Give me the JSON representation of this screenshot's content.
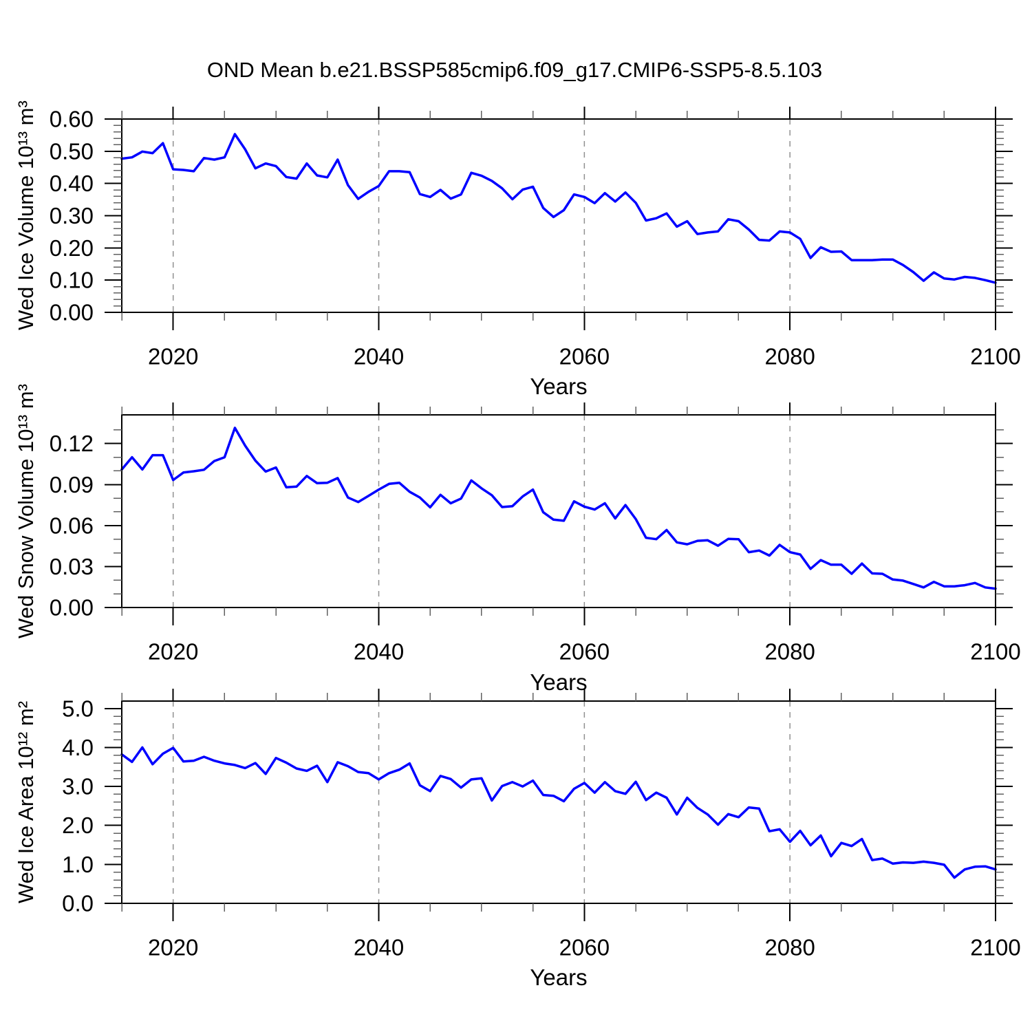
{
  "figure": {
    "title": "OND Mean b.e21.BSSP585cmip6.f09_g17.CMIP6-SSP5-8.5.103",
    "background": "#ffffff",
    "colors": {
      "line": "#0000ff",
      "frame": "#000000",
      "major_tick": "#000000",
      "minor_tick": "#606060",
      "gridline": "#909090",
      "text": "#000000"
    }
  },
  "chart_data": [
    {
      "type": "line",
      "ylabel": "Wed Ice Volume 10¹³ m³",
      "xlabel": "Years",
      "xlim": [
        2015,
        2100
      ],
      "ylim": [
        0,
        0.6
      ],
      "x_start": 2015,
      "x_step": 1,
      "grid": "vertical-dashed",
      "gridlines_x": [
        2020,
        2040,
        2060,
        2080
      ],
      "xticks_major": {
        "values": [
          2020,
          2040,
          2060,
          2080,
          2100
        ],
        "labels": [
          "2020",
          "2040",
          "2060",
          "2080",
          "2100"
        ]
      },
      "xticks_minor": [
        2015,
        2025,
        2030,
        2035,
        2045,
        2050,
        2055,
        2065,
        2070,
        2075,
        2085,
        2090,
        2095
      ],
      "yticks_major": {
        "values": [
          0.0,
          0.1,
          0.2,
          0.3,
          0.4,
          0.5,
          0.6
        ],
        "labels": [
          "0.00",
          "0.10",
          "0.20",
          "0.30",
          "0.40",
          "0.50",
          "0.60"
        ]
      },
      "yticks_minor": [
        0.02,
        0.04,
        0.06,
        0.08,
        0.12,
        0.14,
        0.16,
        0.18,
        0.22,
        0.24,
        0.26,
        0.28,
        0.32,
        0.34,
        0.36,
        0.38,
        0.42,
        0.44,
        0.46,
        0.48,
        0.52,
        0.54,
        0.56,
        0.58
      ],
      "values": [
        0.477,
        0.481,
        0.499,
        0.494,
        0.525,
        0.444,
        0.442,
        0.438,
        0.479,
        0.474,
        0.481,
        0.553,
        0.506,
        0.447,
        0.462,
        0.454,
        0.42,
        0.415,
        0.462,
        0.425,
        0.419,
        0.474,
        0.395,
        0.352,
        0.374,
        0.392,
        0.438,
        0.438,
        0.435,
        0.367,
        0.358,
        0.38,
        0.353,
        0.366,
        0.433,
        0.424,
        0.408,
        0.385,
        0.351,
        0.381,
        0.39,
        0.324,
        0.296,
        0.317,
        0.366,
        0.358,
        0.339,
        0.37,
        0.344,
        0.372,
        0.34,
        0.285,
        0.292,
        0.307,
        0.266,
        0.283,
        0.243,
        0.248,
        0.251,
        0.289,
        0.283,
        0.257,
        0.225,
        0.223,
        0.251,
        0.248,
        0.228,
        0.169,
        0.202,
        0.188,
        0.189,
        0.162,
        0.162,
        0.162,
        0.164,
        0.164,
        0.147,
        0.125,
        0.098,
        0.124,
        0.105,
        0.102,
        0.11,
        0.107,
        0.1,
        0.092
      ]
    },
    {
      "type": "line",
      "ylabel": "Wed Snow Volume 10¹³ m³",
      "xlabel": "Years",
      "xlim": [
        2015,
        2100
      ],
      "ylim": [
        0,
        0.141
      ],
      "x_start": 2015,
      "x_step": 1,
      "grid": "vertical-dashed",
      "gridlines_x": [
        2020,
        2040,
        2060,
        2080
      ],
      "xticks_major": {
        "values": [
          2020,
          2040,
          2060,
          2080,
          2100
        ],
        "labels": [
          "2020",
          "2040",
          "2060",
          "2080",
          "2100"
        ]
      },
      "xticks_minor": [
        2015,
        2025,
        2030,
        2035,
        2045,
        2050,
        2055,
        2065,
        2070,
        2075,
        2085,
        2090,
        2095
      ],
      "yticks_major": {
        "values": [
          0.0,
          0.03,
          0.06,
          0.09,
          0.12
        ],
        "labels": [
          "0.00",
          "0.03",
          "0.06",
          "0.09",
          "0.12"
        ]
      },
      "yticks_minor": [
        0.01,
        0.02,
        0.04,
        0.05,
        0.07,
        0.08,
        0.1,
        0.11,
        0.13
      ],
      "values": [
        0.101,
        0.11,
        0.101,
        0.1115,
        0.1115,
        0.0933,
        0.0988,
        0.0997,
        0.1008,
        0.1072,
        0.11,
        0.1315,
        0.1185,
        0.1075,
        0.0995,
        0.1025,
        0.088,
        0.0885,
        0.0963,
        0.091,
        0.0913,
        0.0947,
        0.0805,
        0.0772,
        0.0817,
        0.0863,
        0.0905,
        0.0913,
        0.0847,
        0.0805,
        0.0733,
        0.0825,
        0.0763,
        0.0797,
        0.093,
        0.0872,
        0.0822,
        0.0735,
        0.0742,
        0.0813,
        0.0863,
        0.0697,
        0.0643,
        0.0635,
        0.0777,
        0.0738,
        0.0717,
        0.0763,
        0.0652,
        0.075,
        0.0647,
        0.051,
        0.05,
        0.0567,
        0.0477,
        0.0463,
        0.0488,
        0.0492,
        0.0452,
        0.0502,
        0.05,
        0.0405,
        0.0417,
        0.038,
        0.0458,
        0.0405,
        0.0388,
        0.0283,
        0.0347,
        0.0313,
        0.0313,
        0.0247,
        0.0322,
        0.025,
        0.0247,
        0.0205,
        0.0197,
        0.0172,
        0.0147,
        0.0188,
        0.0155,
        0.0155,
        0.0163,
        0.018,
        0.0147,
        0.0138
      ]
    },
    {
      "type": "line",
      "ylabel": "Wed Ice Area 10¹² m²",
      "xlabel": "Years",
      "xlim": [
        2015,
        2100
      ],
      "ylim": [
        0,
        5.19
      ],
      "x_start": 2015,
      "x_step": 1,
      "grid": "vertical-dashed",
      "gridlines_x": [
        2020,
        2040,
        2060,
        2080
      ],
      "xticks_major": {
        "values": [
          2020,
          2040,
          2060,
          2080,
          2100
        ],
        "labels": [
          "2020",
          "2040",
          "2060",
          "2080",
          "2100"
        ]
      },
      "xticks_minor": [
        2015,
        2025,
        2030,
        2035,
        2045,
        2050,
        2055,
        2065,
        2070,
        2075,
        2085,
        2090,
        2095
      ],
      "yticks_major": {
        "values": [
          0.0,
          1.0,
          2.0,
          3.0,
          4.0,
          5.0
        ],
        "labels": [
          "0.0",
          "1.0",
          "2.0",
          "3.0",
          "4.0",
          "5.0"
        ]
      },
      "yticks_minor": [
        0.2,
        0.4,
        0.6,
        0.8,
        1.2,
        1.4,
        1.6,
        1.8,
        2.2,
        2.4,
        2.6,
        2.8,
        3.2,
        3.4,
        3.6,
        3.8,
        4.2,
        4.4,
        4.6,
        4.8
      ],
      "values": [
        3.82,
        3.63,
        4.0,
        3.57,
        3.84,
        3.99,
        3.64,
        3.66,
        3.76,
        3.66,
        3.59,
        3.55,
        3.47,
        3.6,
        3.32,
        3.73,
        3.61,
        3.46,
        3.4,
        3.53,
        3.11,
        3.62,
        3.52,
        3.37,
        3.34,
        3.18,
        3.34,
        3.43,
        3.59,
        3.03,
        2.88,
        3.27,
        3.19,
        2.97,
        3.18,
        3.21,
        2.64,
        3.01,
        3.11,
        3.0,
        3.15,
        2.78,
        2.76,
        2.62,
        2.94,
        3.09,
        2.84,
        3.11,
        2.88,
        2.81,
        3.12,
        2.65,
        2.84,
        2.71,
        2.28,
        2.71,
        2.45,
        2.28,
        2.02,
        2.29,
        2.21,
        2.46,
        2.43,
        1.85,
        1.9,
        1.58,
        1.86,
        1.49,
        1.74,
        1.21,
        1.55,
        1.47,
        1.65,
        1.11,
        1.15,
        1.02,
        1.05,
        1.04,
        1.07,
        1.04,
        0.99,
        0.66,
        0.87,
        0.94,
        0.95,
        0.87
      ]
    }
  ]
}
